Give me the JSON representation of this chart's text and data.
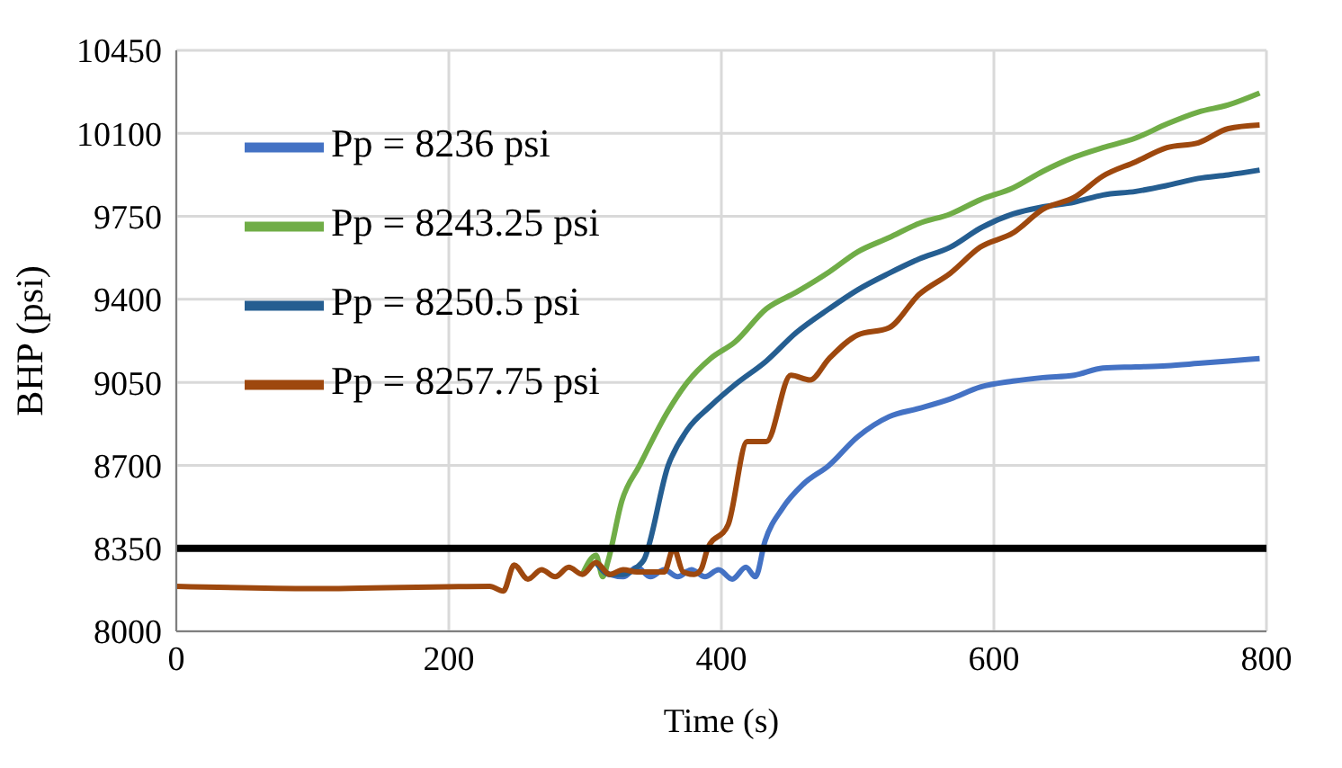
{
  "chart_data": {
    "type": "line",
    "xlabel": "Time (s)",
    "ylabel": "BHP (psi)",
    "xlim": [
      0,
      800
    ],
    "xticks": [
      0,
      200,
      400,
      600,
      800
    ],
    "ylim": [
      8000,
      10450
    ],
    "yticks": [
      8000,
      8350,
      8700,
      9050,
      9400,
      9750,
      10100,
      10450
    ],
    "grid": true,
    "legend": "top left",
    "marker": "none",
    "line_style": "solid",
    "ref_lines": [
      {
        "axis": "y",
        "value": 8350,
        "color": "#000000"
      }
    ],
    "series": [
      {
        "name": "Pp = 8236 psi",
        "color": "#4472c4",
        "x": [
          308,
          318,
          328,
          338,
          348,
          358,
          368,
          378,
          388,
          398,
          408,
          418,
          425,
          432,
          445,
          460,
          479,
          500,
          523,
          545,
          568,
          590,
          614,
          636,
          659,
          680,
          704,
          727,
          750,
          772,
          795
        ],
        "values": [
          8290,
          8240,
          8230,
          8270,
          8230,
          8260,
          8230,
          8260,
          8230,
          8260,
          8220,
          8270,
          8230,
          8380,
          8520,
          8620,
          8700,
          8820,
          8905,
          8940,
          8980,
          9030,
          9055,
          9070,
          9080,
          9110,
          9115,
          9120,
          9130,
          9140,
          9150
        ]
      },
      {
        "name": "Pp = 8243.25  psi",
        "color": "#70ad47",
        "x": [
          298,
          308,
          313,
          317,
          327,
          340,
          361,
          375,
          392,
          410,
          433,
          455,
          479,
          500,
          523,
          545,
          568,
          590,
          614,
          636,
          659,
          680,
          704,
          727,
          750,
          772,
          795
        ],
        "values": [
          8240,
          8320,
          8230,
          8300,
          8550,
          8700,
          8930,
          9050,
          9150,
          9220,
          9360,
          9430,
          9515,
          9600,
          9660,
          9720,
          9760,
          9820,
          9870,
          9940,
          10000,
          10040,
          10080,
          10140,
          10190,
          10220,
          10270
        ]
      },
      {
        "name": "Pp = 8250.5  psi",
        "color": "#255e91",
        "x": [
          308,
          318,
          328,
          338,
          343,
          361,
          375,
          392,
          410,
          433,
          455,
          479,
          500,
          523,
          545,
          568,
          590,
          614,
          636,
          659,
          680,
          704,
          727,
          750,
          772,
          795
        ],
        "values": [
          8290,
          8240,
          8240,
          8270,
          8300,
          8700,
          8850,
          8950,
          9040,
          9140,
          9260,
          9360,
          9440,
          9510,
          9570,
          9620,
          9700,
          9760,
          9790,
          9810,
          9840,
          9855,
          9880,
          9910,
          9925,
          9945
        ]
      },
      {
        "name": "Pp = 8257.75 psi",
        "color": "#9e480e",
        "x": [
          0,
          100,
          230,
          240,
          248,
          258,
          268,
          278,
          288,
          298,
          308,
          318,
          328,
          338,
          348,
          358,
          365,
          372,
          380,
          385,
          390,
          405,
          419,
          433,
          451,
          465,
          479,
          500,
          523,
          545,
          568,
          590,
          614,
          636,
          659,
          680,
          704,
          727,
          750,
          772,
          795
        ],
        "values": [
          8190,
          8180,
          8190,
          8170,
          8280,
          8220,
          8260,
          8230,
          8270,
          8240,
          8290,
          8240,
          8260,
          8250,
          8250,
          8250,
          8350,
          8250,
          8240,
          8260,
          8350,
          8450,
          8800,
          8800,
          9080,
          9060,
          9150,
          9250,
          9280,
          9420,
          9510,
          9620,
          9680,
          9780,
          9830,
          9920,
          9980,
          10040,
          10060,
          10120,
          10135
        ]
      }
    ]
  }
}
